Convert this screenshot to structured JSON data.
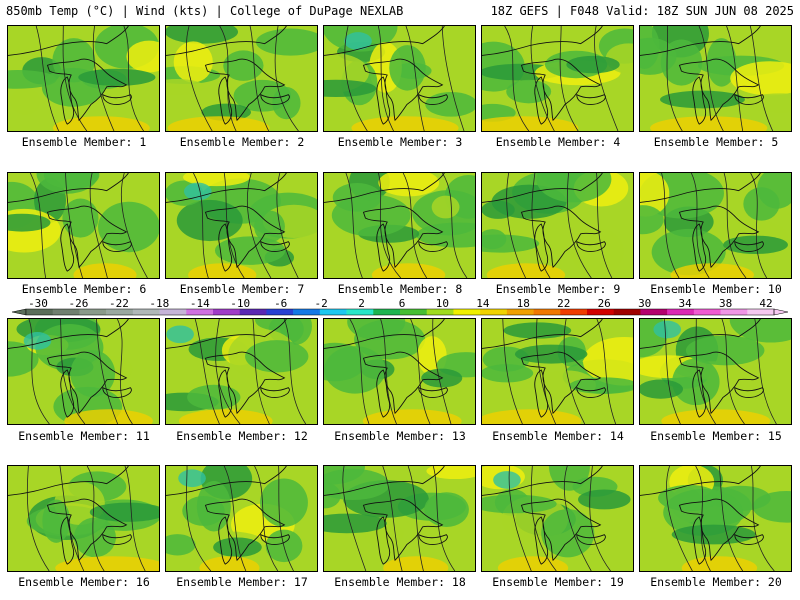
{
  "header": {
    "left": "850mb Temp (°C) | Wind (kts) | College of DuPage NEXLAB",
    "right": "18Z GEFS | F048 Valid: 18Z SUN JUN 08 2025"
  },
  "panels": [
    {
      "label": "Ensemble Member: 1"
    },
    {
      "label": "Ensemble Member: 2"
    },
    {
      "label": "Ensemble Member: 3"
    },
    {
      "label": "Ensemble Member: 4"
    },
    {
      "label": "Ensemble Member: 5"
    },
    {
      "label": "Ensemble Member: 6"
    },
    {
      "label": "Ensemble Member: 7"
    },
    {
      "label": "Ensemble Member: 8"
    },
    {
      "label": "Ensemble Member: 9"
    },
    {
      "label": "Ensemble Member: 10"
    },
    {
      "label": "Ensemble Member: 11"
    },
    {
      "label": "Ensemble Member: 12"
    },
    {
      "label": "Ensemble Member: 13"
    },
    {
      "label": "Ensemble Member: 14"
    },
    {
      "label": "Ensemble Member: 15"
    },
    {
      "label": "Ensemble Member: 16"
    },
    {
      "label": "Ensemble Member: 17"
    },
    {
      "label": "Ensemble Member: 18"
    },
    {
      "label": "Ensemble Member: 19"
    },
    {
      "label": "Ensemble Member: 20"
    }
  ],
  "colorbar": {
    "tick_labels": [
      "-30",
      "-26",
      "-22",
      "-18",
      "-14",
      "-10",
      "-6",
      "-2",
      "2",
      "6",
      "10",
      "14",
      "18",
      "22",
      "26",
      "30",
      "34",
      "38",
      "42"
    ],
    "colors": [
      "#5a6e5a",
      "#708070",
      "#8a9a8a",
      "#9aa8a0",
      "#b0b8b8",
      "#c6b4d8",
      "#d070e0",
      "#a03cc8",
      "#5a28b4",
      "#2840d2",
      "#1478e6",
      "#1ec8f0",
      "#28e6c8",
      "#1eb450",
      "#46be32",
      "#a0dc1e",
      "#f0f000",
      "#f0d200",
      "#f0a000",
      "#f07800",
      "#f03c00",
      "#d20000",
      "#a00000",
      "#b4006e",
      "#dc28b4",
      "#f05ad2",
      "#f096e6",
      "#f5c8f0"
    ]
  },
  "legend_palette": {
    "dark_green": "#2a9a3a",
    "green": "#4cb83c",
    "light_green": "#a8d626",
    "yellow": "#eeee10",
    "orange_yellow": "#f0d000",
    "teal": "#30c0a0"
  }
}
